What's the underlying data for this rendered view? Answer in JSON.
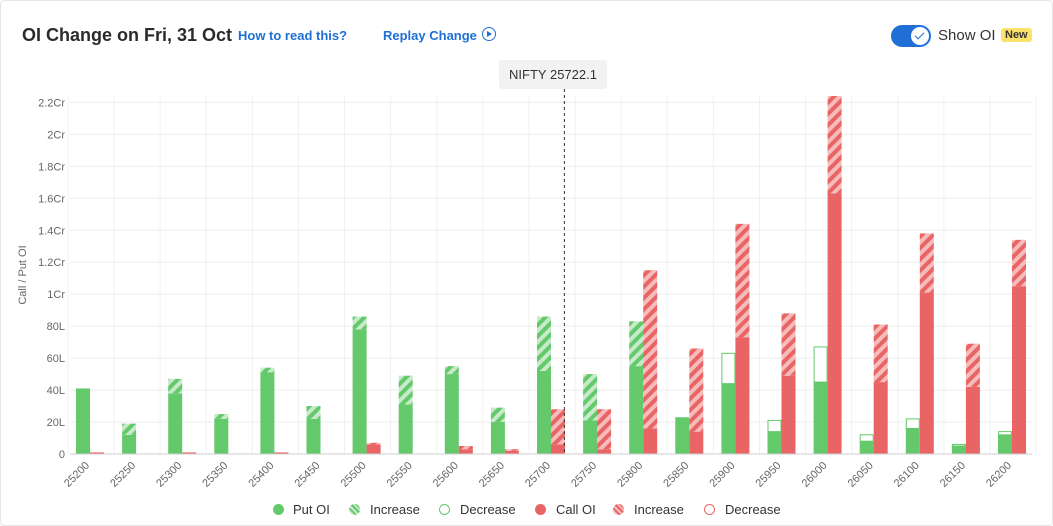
{
  "header": {
    "title": "OI Change on Fri, 31 Oct",
    "how_to_link": "How to read this?",
    "replay_link": "Replay Change",
    "show_oi_label": "Show OI",
    "new_badge": "New"
  },
  "colors": {
    "put": "#63c96a",
    "call": "#e96464",
    "accent": "#1f6fd6"
  },
  "chart_data": {
    "type": "bar",
    "spot_label": "NIFTY 25722.1",
    "spot_value": 25722.1,
    "ylabel": "Call / Put OI",
    "yticks": [
      "0",
      "20L",
      "40L",
      "60L",
      "80L",
      "1Cr",
      "1.2Cr",
      "1.4Cr",
      "1.6Cr",
      "1.8Cr",
      "2Cr",
      "2.2Cr"
    ],
    "ylim_lakh": [
      0,
      224
    ],
    "categories": [
      "25200",
      "25250",
      "25300",
      "25350",
      "25400",
      "25450",
      "25500",
      "25550",
      "25600",
      "25650",
      "25700",
      "25750",
      "25800",
      "25850",
      "25900",
      "25950",
      "26000",
      "26050",
      "26100",
      "26150",
      "26200"
    ],
    "put_oi_lakh": [
      41,
      12,
      38,
      22,
      51,
      22,
      78,
      31,
      50,
      20,
      52,
      21,
      55,
      23,
      44,
      14,
      45,
      8,
      16,
      5,
      12
    ],
    "put_change_lakh": [
      0,
      7,
      9,
      3,
      3,
      8,
      8,
      18,
      5,
      9,
      34,
      29,
      28,
      0,
      -19,
      -7,
      -22,
      -4,
      -6,
      -1,
      -2
    ],
    "call_oi_lakh": [
      1,
      0,
      1,
      0,
      1,
      0,
      6,
      0,
      3,
      2,
      6,
      3,
      16,
      14,
      73,
      49,
      163,
      45,
      101,
      42,
      105
    ],
    "call_change_lakh": [
      0,
      0,
      0,
      0,
      0,
      0,
      1,
      0,
      2,
      1,
      22,
      25,
      99,
      52,
      71,
      39,
      61,
      36,
      37,
      27,
      29
    ],
    "legend": [
      "Put OI",
      "Increase",
      "Decrease",
      "Call OI",
      "Increase",
      "Decrease"
    ]
  }
}
